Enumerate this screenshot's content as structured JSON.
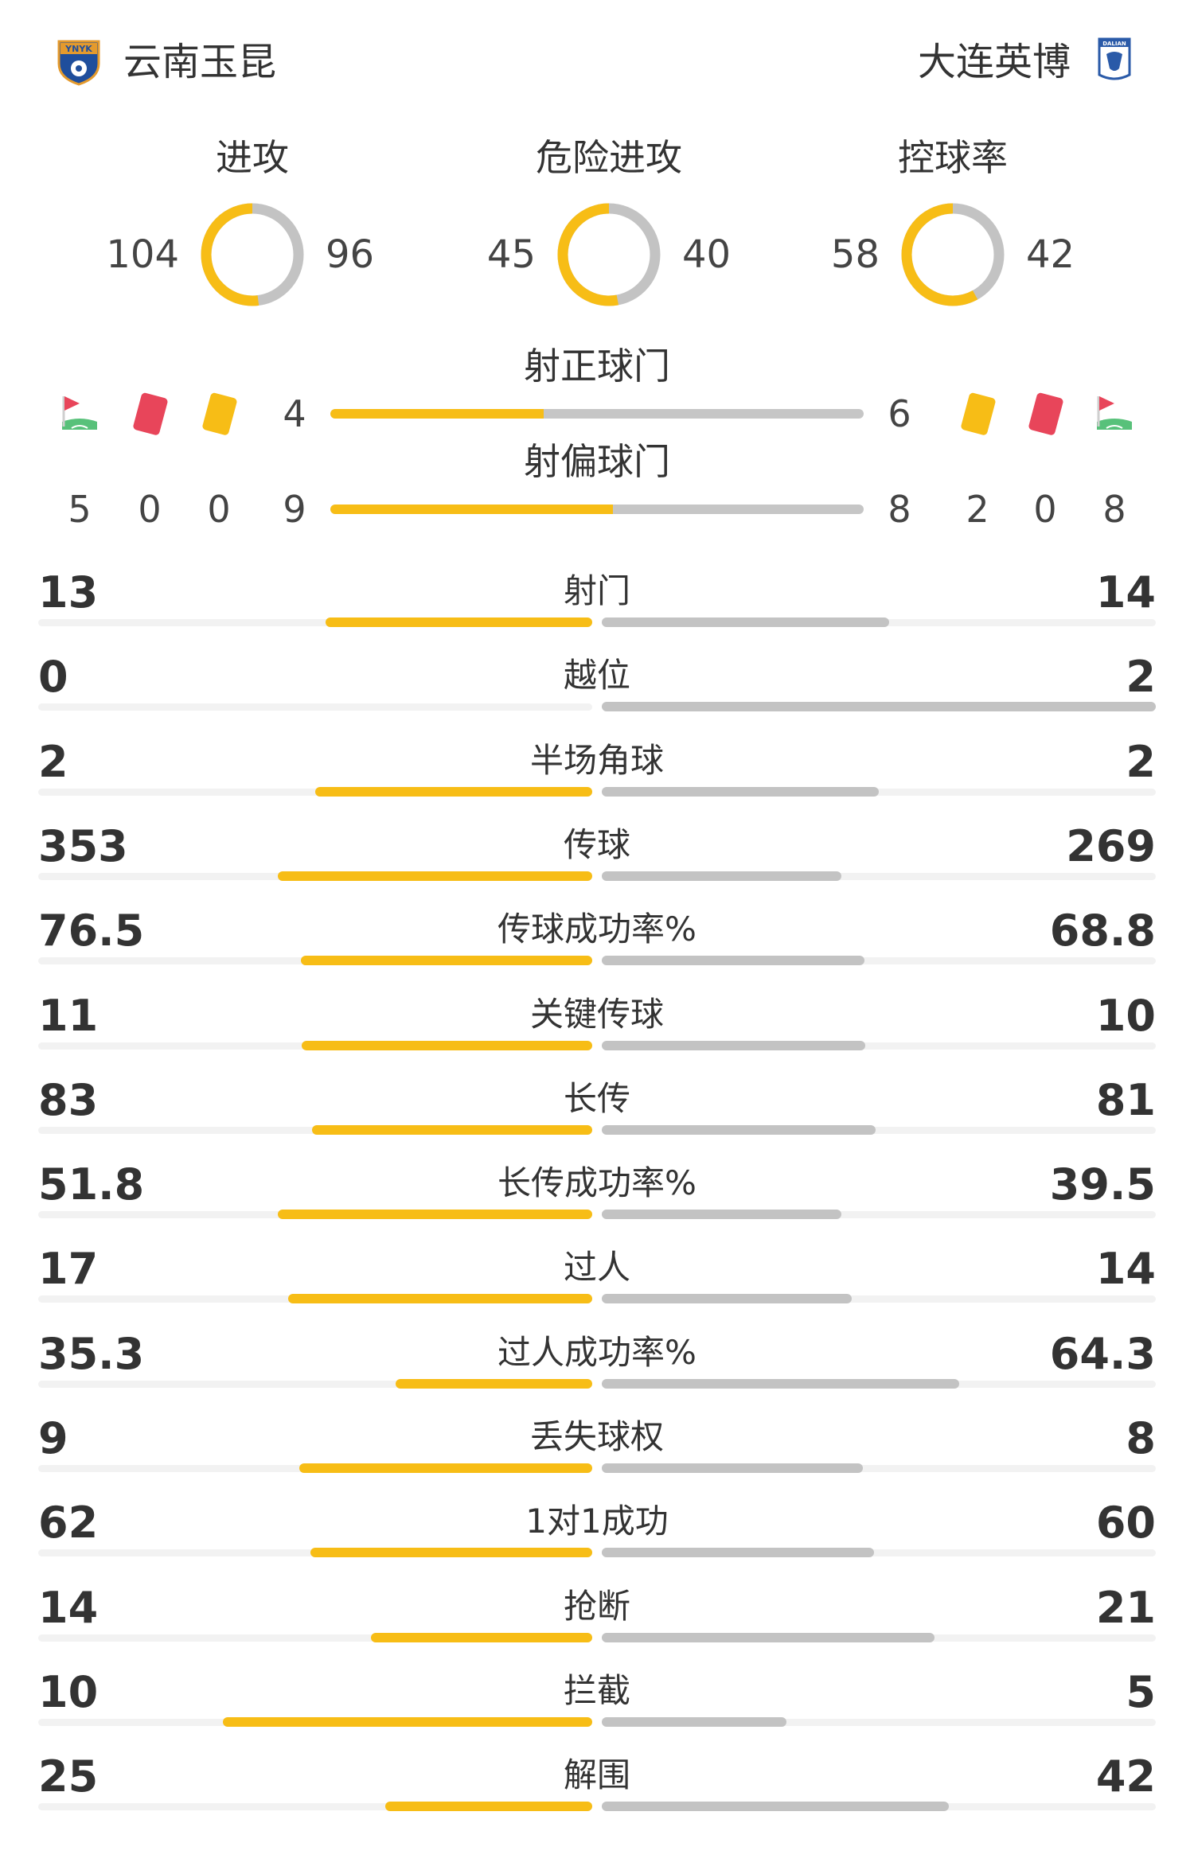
{
  "header": {
    "home_team": "云南玉昆",
    "away_team": "大连英博",
    "home_logo": "YNYK",
    "away_logo": "DALIAN"
  },
  "colors": {
    "home": "#f7bd16",
    "away": "#c3c3c3",
    "red_card": "#e8455a",
    "yellow_card": "#f7bd16"
  },
  "donuts": [
    {
      "title": "进攻",
      "home": "104",
      "away": "96",
      "home_value": 104,
      "away_value": 96
    },
    {
      "title": "危险进攻",
      "home": "45",
      "away": "40",
      "home_value": 45,
      "away_value": 40
    },
    {
      "title": "控球率",
      "home": "58",
      "away": "42",
      "home_value": 58,
      "away_value": 42
    }
  ],
  "shots": {
    "on_target": {
      "title": "射正球门",
      "home": "4",
      "away": "6",
      "home_value": 4,
      "away_value": 6
    },
    "off_target": {
      "title": "射偏球门",
      "home": "9",
      "away": "8",
      "home_value": 9,
      "away_value": 8
    }
  },
  "discipline": {
    "icons_home": [
      "corner-flag-icon",
      "red-card-icon",
      "yellow-card-icon"
    ],
    "icons_away": [
      "yellow-card-icon",
      "red-card-icon",
      "corner-flag-icon"
    ],
    "home": {
      "corners": "5",
      "red": "0",
      "yellow": "0"
    },
    "away": {
      "yellow": "2",
      "red": "0",
      "corners": "8"
    }
  },
  "stats": [
    {
      "label": "射门",
      "home": "13",
      "away": "14",
      "home_value": 13,
      "away_value": 14
    },
    {
      "label": "越位",
      "home": "0",
      "away": "2",
      "home_value": 0,
      "away_value": 2
    },
    {
      "label": "半场角球",
      "home": "2",
      "away": "2",
      "home_value": 2,
      "away_value": 2
    },
    {
      "label": "传球",
      "home": "353",
      "away": "269",
      "home_value": 353,
      "away_value": 269
    },
    {
      "label": "传球成功率%",
      "home": "76.5",
      "away": "68.8",
      "home_value": 76.5,
      "away_value": 68.8
    },
    {
      "label": "关键传球",
      "home": "11",
      "away": "10",
      "home_value": 11,
      "away_value": 10
    },
    {
      "label": "长传",
      "home": "83",
      "away": "81",
      "home_value": 83,
      "away_value": 81
    },
    {
      "label": "长传成功率%",
      "home": "51.8",
      "away": "39.5",
      "home_value": 51.8,
      "away_value": 39.5
    },
    {
      "label": "过人",
      "home": "17",
      "away": "14",
      "home_value": 17,
      "away_value": 14
    },
    {
      "label": "过人成功率%",
      "home": "35.3",
      "away": "64.3",
      "home_value": 35.3,
      "away_value": 64.3
    },
    {
      "label": "丢失球权",
      "home": "9",
      "away": "8",
      "home_value": 9,
      "away_value": 8
    },
    {
      "label": "1对1成功",
      "home": "62",
      "away": "60",
      "home_value": 62,
      "away_value": 60
    },
    {
      "label": "抢断",
      "home": "14",
      "away": "21",
      "home_value": 14,
      "away_value": 21
    },
    {
      "label": "拦截",
      "home": "10",
      "away": "5",
      "home_value": 10,
      "away_value": 5
    },
    {
      "label": "解围",
      "home": "25",
      "away": "42",
      "home_value": 25,
      "away_value": 42
    }
  ]
}
